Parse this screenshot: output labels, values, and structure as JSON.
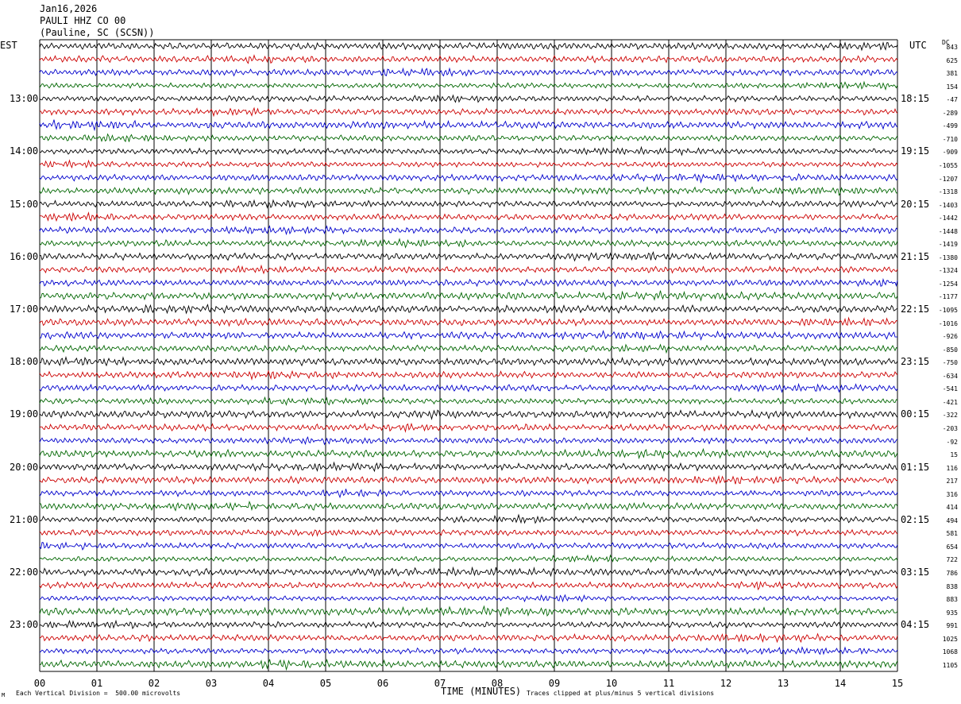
{
  "header": {
    "date": "Jan16,2026",
    "station": "PAULI HHZ CO 00",
    "location": "(Pauline, SC (SCSN))"
  },
  "labels": {
    "left_tz": "EST",
    "right_tz": "UTC",
    "dc": "DC",
    "xlabel": "TIME (MINUTES)",
    "scale_note": "Each Vertical Division =  500.00 microvolts",
    "clip_note": "Traces clipped at plus/minus 5 vertical divisions",
    "corner_mark": "M"
  },
  "colors": {
    "cycle": [
      "#000000",
      "#cc0000",
      "#0000cc",
      "#006600"
    ],
    "grid": "#000000"
  },
  "chart_data": {
    "type": "line",
    "title": "Jan16,2026 PAULI HHZ CO 00 (Pauline, SC (SCSN))",
    "xlabel": "TIME (MINUTES)",
    "xlim": [
      0,
      15
    ],
    "x_ticks": [
      "00",
      "01",
      "02",
      "03",
      "04",
      "05",
      "06",
      "07",
      "08",
      "09",
      "10",
      "11",
      "12",
      "13",
      "14",
      "15"
    ],
    "left_hour_labels": [
      "13:00",
      "14:00",
      "15:00",
      "16:00",
      "17:00",
      "18:00",
      "19:00",
      "20:00",
      "21:00",
      "22:00",
      "23:00"
    ],
    "right_hour_labels": [
      "18:15",
      "19:15",
      "20:15",
      "21:15",
      "22:15",
      "23:15",
      "00:15",
      "01:15",
      "02:15",
      "03:15",
      "04:15"
    ],
    "trace_count": 48,
    "trace_color_cycle": [
      "black",
      "red",
      "blue",
      "green"
    ],
    "dc_offsets": [
      843,
      625,
      381,
      154,
      -47,
      -289,
      -499,
      -710,
      -909,
      -1055,
      -1207,
      -1318,
      -1403,
      -1442,
      -1448,
      -1419,
      -1380,
      -1324,
      -1254,
      -1177,
      -1095,
      -1016,
      -926,
      -850,
      -750,
      -634,
      -541,
      -421,
      -322,
      -203,
      -92,
      15,
      116,
      217,
      316,
      414,
      494,
      581,
      654,
      722,
      786,
      838,
      883,
      935,
      991,
      1025,
      1068,
      1105
    ],
    "grid": true
  }
}
